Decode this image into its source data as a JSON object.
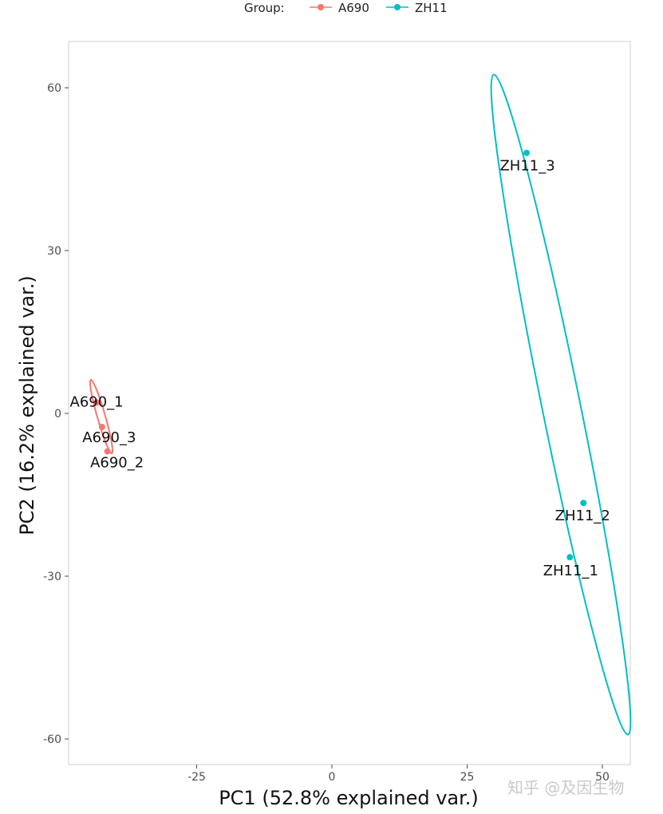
{
  "chart_data": {
    "type": "scatter",
    "xlabel": "PC1 (52.8% explained var.)",
    "ylabel": "PC2 (16.2% explained var.)",
    "xlim": [
      -48.5,
      55
    ],
    "ylim": [
      -65,
      68
    ],
    "x_ticks": [
      -25,
      0,
      25,
      50
    ],
    "y_ticks": [
      -60,
      -30,
      0,
      30,
      60
    ],
    "grid": false,
    "legend": {
      "title": "Group:",
      "position": "top",
      "entries": [
        "A690",
        "ZH11"
      ]
    },
    "series": [
      {
        "name": "A690",
        "color": "#F8766D",
        "points": [
          {
            "label": "A690_1",
            "x": -43.5,
            "y": 2
          },
          {
            "label": "A690_3",
            "x": -42.5,
            "y": -2.5
          },
          {
            "label": "A690_2",
            "x": -41.5,
            "y": -7
          }
        ]
      },
      {
        "name": "ZH11",
        "color": "#00BFC4",
        "points": [
          {
            "label": "ZH11_3",
            "x": 36,
            "y": 48
          },
          {
            "label": "ZH11_2",
            "x": 46.5,
            "y": -16.5
          },
          {
            "label": "ZH11_1",
            "x": 44,
            "y": -26.5
          }
        ]
      }
    ]
  },
  "watermark": "知乎 @及因生物"
}
